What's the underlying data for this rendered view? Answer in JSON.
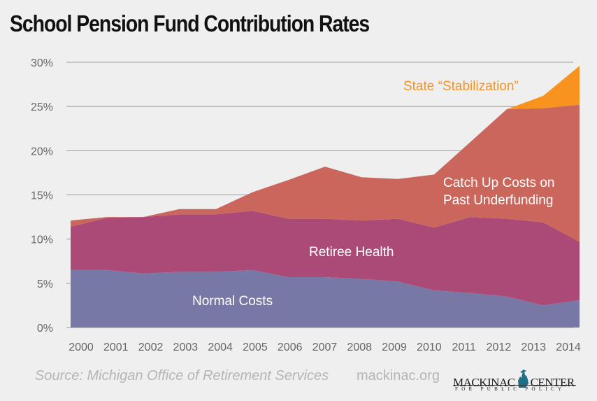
{
  "title": "School Pension Fund Contribution Rates",
  "footer": {
    "source": "Source: Michigan Office of Retirement Services",
    "url": "mackinac.org",
    "logo_main_left": "MACKINAC",
    "logo_main_right": "CENTER",
    "logo_sub": "FOR PUBLIC POLICY",
    "logo_icon": "michigan-map-icon"
  },
  "colors": {
    "normal_costs": "#7878a6",
    "retiree_health": "#ab4a76",
    "catch_up": "#cb665d",
    "stabilization": "#f7931e",
    "grid": "#999999"
  },
  "chart_data": {
    "type": "area",
    "stacked": true,
    "title": "School Pension Fund Contribution Rates",
    "xlabel": "",
    "ylabel": "",
    "x": [
      "2000",
      "2001",
      "2002",
      "2003",
      "2004",
      "2005",
      "2006",
      "2007",
      "2008",
      "2009",
      "2010",
      "2011",
      "2012",
      "2013",
      "2014"
    ],
    "ylim": [
      0,
      30
    ],
    "yticks": [
      "0%",
      "5%",
      "10%",
      "15%",
      "20%",
      "25%",
      "30%"
    ],
    "ytick_values": [
      0,
      5,
      10,
      15,
      20,
      25,
      30
    ],
    "grid": true,
    "series": [
      {
        "name": "Normal Costs",
        "key": "normal_costs",
        "values": [
          6.5,
          6.5,
          6.1,
          6.3,
          6.3,
          6.5,
          5.7,
          5.7,
          5.5,
          5.2,
          4.2,
          3.9,
          3.5,
          2.5,
          3.1
        ]
      },
      {
        "name": "Retiree Health",
        "key": "retiree_health",
        "values": [
          4.9,
          5.9,
          6.4,
          6.5,
          6.5,
          6.7,
          6.6,
          6.6,
          6.6,
          7.1,
          7.1,
          8.6,
          8.8,
          9.4,
          6.6
        ]
      },
      {
        "name": "Catch Up Costs on Past Underfunding",
        "key": "catch_up",
        "values": [
          0.7,
          0.1,
          0.0,
          0.6,
          0.6,
          2.1,
          4.4,
          5.9,
          4.9,
          4.5,
          6.0,
          8.5,
          12.4,
          12.9,
          15.5
        ]
      },
      {
        "name": "State “Stabilization”",
        "key": "stabilization",
        "values": [
          0,
          0,
          0,
          0,
          0,
          0,
          0,
          0,
          0,
          0,
          0,
          0,
          0,
          1.4,
          4.4
        ]
      }
    ],
    "annotations": [
      {
        "text": "Normal Costs",
        "series": "normal_costs"
      },
      {
        "text": "Retiree Health",
        "series": "retiree_health"
      },
      {
        "text": "Catch Up Costs on",
        "series": "catch_up"
      },
      {
        "text": "Past Underfunding",
        "series": "catch_up"
      },
      {
        "text": "State “Stabilization”",
        "series": "stabilization"
      }
    ]
  }
}
